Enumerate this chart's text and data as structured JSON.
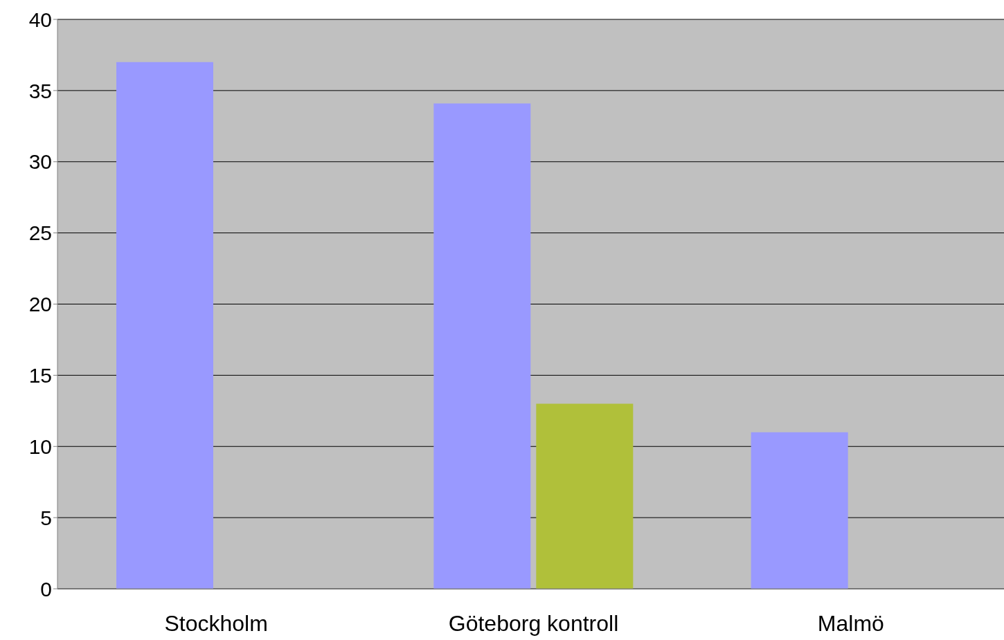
{
  "chart_data": {
    "type": "bar",
    "categories": [
      "Stockholm",
      "Göteborg  kontroll",
      "Malmö"
    ],
    "series": [
      {
        "color": "#9999ff",
        "values": [
          37,
          34.1,
          11
        ]
      },
      {
        "color": "#b0c03a",
        "values": [
          null,
          13,
          null
        ]
      }
    ],
    "ylim": [
      0,
      40
    ],
    "yticks": [
      0,
      5,
      10,
      15,
      20,
      25,
      30,
      35,
      40
    ],
    "grid": "y"
  }
}
